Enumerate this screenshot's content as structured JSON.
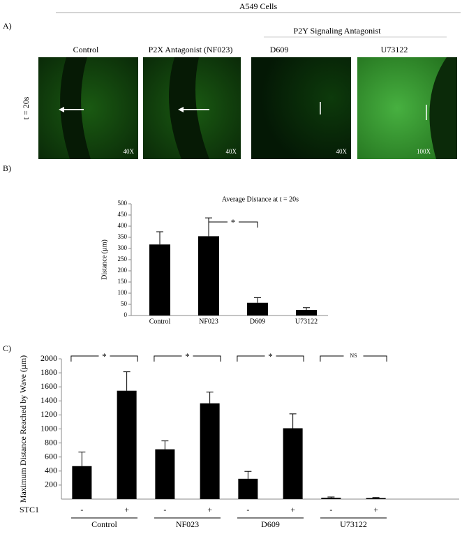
{
  "header": {
    "title": "A549 Cells"
  },
  "panel_a": {
    "label": "A)",
    "group_label": "P2Y Signaling Antagonist",
    "row_label": "t = 20s",
    "images": [
      {
        "caption": "Control",
        "magnification": "40X"
      },
      {
        "caption": "P2X Antagonist (NF023)",
        "magnification": "40X"
      },
      {
        "caption": "D609",
        "magnification": "40X"
      },
      {
        "caption": "U73122",
        "magnification": "100X"
      }
    ]
  },
  "panel_b": {
    "label": "B)"
  },
  "panel_c": {
    "label": "C)"
  },
  "chart_data": [
    {
      "type": "bar",
      "title": "Average Distance at t = 20s",
      "y_label": "Distance (µm)",
      "categories": [
        "Control",
        "NF023",
        "D609",
        "U73122"
      ],
      "series": [
        {
          "name": null,
          "color": "#000000",
          "values": [
            318,
            355,
            57,
            25
          ],
          "errors": [
            57,
            82,
            23,
            10
          ]
        }
      ],
      "ylim": [
        0,
        500
      ],
      "yticks": [
        0,
        50,
        100,
        150,
        200,
        250,
        300,
        350,
        400,
        450,
        500
      ],
      "significance": [
        "*"
      ]
    },
    {
      "type": "bar",
      "y_label": "Maximum Distance Reached by Wave (µm)",
      "x_label": "STC1",
      "categories": [
        "Control",
        "NF023",
        "D609",
        "U73122"
      ],
      "series": [
        {
          "name": "-",
          "color": "#000000",
          "values": [
            470,
            710,
            290,
            20
          ],
          "errors": [
            200,
            120,
            105,
            10
          ]
        },
        {
          "name": "+",
          "color": "#000000",
          "values": [
            1545,
            1365,
            1010,
            15
          ],
          "errors": [
            270,
            160,
            205,
            8
          ]
        }
      ],
      "ylim": [
        0,
        2000
      ],
      "yticks": [
        200,
        400,
        600,
        800,
        1000,
        1200,
        1400,
        1600,
        1800,
        2000
      ],
      "significance": [
        "*",
        "*",
        "*",
        "NS"
      ]
    }
  ]
}
